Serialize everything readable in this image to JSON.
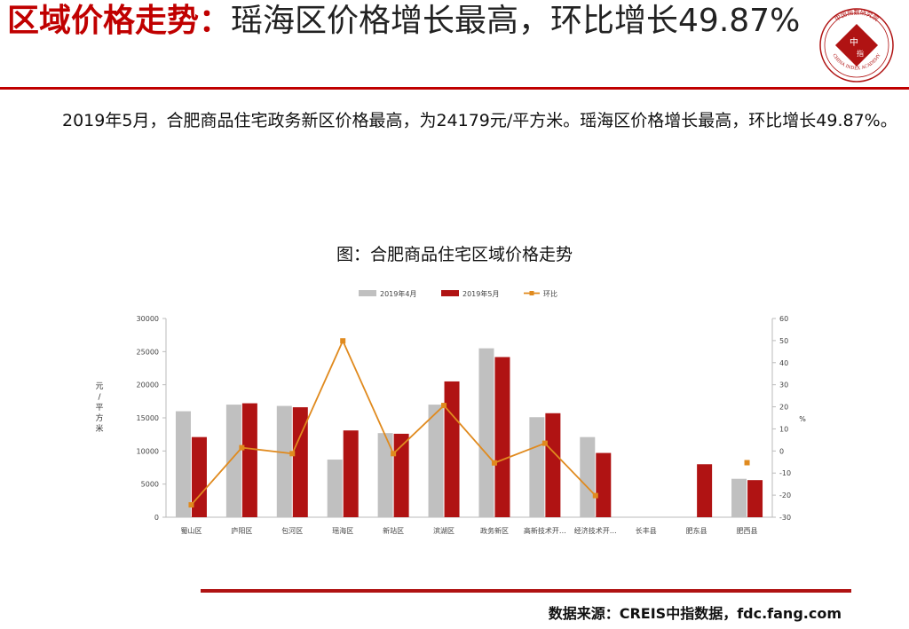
{
  "header": {
    "title_red": "区域价格走势：",
    "title_rest": "瑶海区价格增长最高，环比增长49.87%"
  },
  "logo": {
    "arc_text": "中国指数研究院",
    "center_text_1": "中",
    "center_text_2": "指",
    "bottom_text": "CHINA INDEX ACADEMY",
    "color": "#b01313"
  },
  "description": "2019年5月，合肥商品住宅政务新区价格最高，为24179元/平方米。瑶海区价格增长最高，环比增长49.87%。",
  "chart_title": "图：合肥商品住宅区域价格走势",
  "chart_data": {
    "type": "bar",
    "categories": [
      "蜀山区",
      "庐阳区",
      "包河区",
      "瑶海区",
      "新站区",
      "滨湖区",
      "政务新区",
      "高新技术开…",
      "经济技术开…",
      "长丰县",
      "肥东县",
      "肥西县"
    ],
    "series": [
      {
        "name": "2019年4月",
        "type": "bar",
        "axis": "left",
        "color": "#c0c0c0",
        "values": [
          16000,
          17000,
          16800,
          8700,
          12700,
          17000,
          25500,
          15100,
          12100,
          null,
          null,
          5800
        ]
      },
      {
        "name": "2019年5月",
        "type": "bar",
        "axis": "left",
        "color": "#b01313",
        "values": [
          12100,
          17200,
          16600,
          13100,
          12600,
          20500,
          24179,
          15700,
          9700,
          null,
          8000,
          5600
        ]
      },
      {
        "name": "环比",
        "type": "line",
        "axis": "right",
        "color": "#e08a1e",
        "values": [
          -24.4,
          1.5,
          -1.2,
          49.87,
          -1.2,
          20.6,
          -5.4,
          3.5,
          -20.2,
          null,
          null,
          -5.3
        ]
      }
    ],
    "y_left": {
      "label": "元/平方米",
      "min": 0,
      "max": 30000,
      "ticks": [
        "0",
        "5000",
        "10000",
        "15000",
        "20000",
        "25000",
        "30000"
      ]
    },
    "y_right": {
      "label": "%",
      "min": -30,
      "max": 60,
      "ticks": [
        "-30",
        "-20",
        "-10",
        "0",
        "10",
        "20",
        "30",
        "40",
        "50",
        "60"
      ]
    },
    "legend_position": "top-center",
    "grid": false
  },
  "source": "数据来源：CREIS中指数据，fdc.fang.com"
}
